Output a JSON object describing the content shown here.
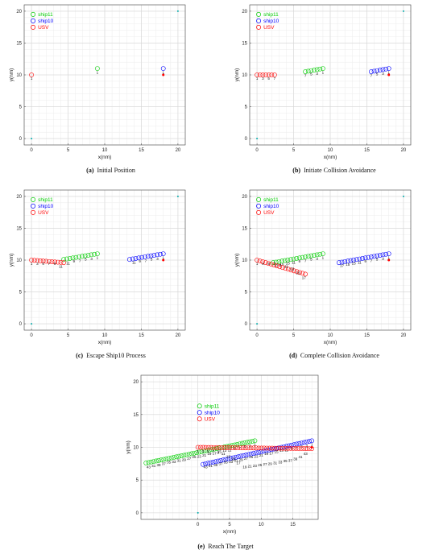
{
  "chart_data": [
    {
      "type": "scatter",
      "caption_tag": "(a)",
      "caption": "Initial Position",
      "xlabel": "x(nm)",
      "ylabel": "y(nm)",
      "xlim": [
        -1,
        21
      ],
      "ylim": [
        -1,
        21
      ],
      "xticks": [
        0,
        5,
        10,
        15,
        20
      ],
      "yticks": [
        0,
        5,
        10,
        15,
        20
      ],
      "grid": true,
      "legend_position": "top-left",
      "series": [
        {
          "name": "ship11",
          "color": "#00cc00",
          "start": [
            9,
            11
          ],
          "end": [
            9,
            11
          ],
          "count": 1,
          "labels": [
            [
              1,
              9,
              10.4
            ]
          ]
        },
        {
          "name": "ship10",
          "color": "#0000ff",
          "start": [
            18,
            11
          ],
          "end": [
            18,
            11
          ],
          "count": 1,
          "labels": [
            [
              1,
              18,
              10.4
            ]
          ]
        },
        {
          "name": "USV",
          "color": "#ff0000",
          "start": [
            0,
            10
          ],
          "end": [
            0,
            10
          ],
          "count": 1,
          "labels": [
            [
              1,
              0,
              9.4
            ]
          ]
        }
      ],
      "markers": [
        {
          "kind": "start",
          "x": 0,
          "y": 0,
          "color": "#00aaaa"
        },
        {
          "kind": "target",
          "x": 20,
          "y": 20,
          "color": "#00aaaa"
        },
        {
          "kind": "ship10-marker",
          "x": 18,
          "y": 10,
          "color": "#ff0000"
        }
      ]
    },
    {
      "type": "scatter",
      "caption_tag": "(b)",
      "caption": "Initiate Collision Avoidance",
      "xlabel": "x(nm)",
      "ylabel": "y(nm)",
      "xlim": [
        -1,
        21
      ],
      "ylim": [
        -1,
        21
      ],
      "xticks": [
        0,
        5,
        10,
        15,
        20
      ],
      "yticks": [
        0,
        5,
        10,
        15,
        20
      ],
      "grid": true,
      "legend_position": "top-left",
      "series": [
        {
          "name": "ship11",
          "color": "#00cc00",
          "start": [
            9,
            11
          ],
          "end": [
            6.6,
            10.5
          ],
          "count": 7,
          "labels": [
            [
              1,
              9,
              10.4
            ],
            [
              3,
              8.2,
              10.2
            ],
            [
              5,
              7.4,
              10.1
            ],
            [
              7,
              6.6,
              9.9
            ]
          ]
        },
        {
          "name": "ship10",
          "color": "#0000ff",
          "start": [
            18,
            11
          ],
          "end": [
            15.6,
            10.5
          ],
          "count": 7,
          "labels": [
            [
              1,
              18,
              10.4
            ],
            [
              3,
              17.2,
              10.2
            ],
            [
              5,
              16.4,
              10.1
            ],
            [
              7,
              15.6,
              9.9
            ]
          ]
        },
        {
          "name": "USV",
          "color": "#ff0000",
          "start": [
            0,
            10
          ],
          "end": [
            2.4,
            10
          ],
          "count": 7,
          "labels": [
            [
              1,
              0,
              9.4
            ],
            [
              3,
              0.8,
              9.4
            ],
            [
              5,
              1.6,
              9.4
            ],
            [
              7,
              2.4,
              9.4
            ]
          ]
        }
      ],
      "markers": [
        {
          "kind": "start",
          "x": 0,
          "y": 0,
          "color": "#00aaaa"
        },
        {
          "kind": "target",
          "x": 20,
          "y": 20,
          "color": "#00aaaa"
        },
        {
          "kind": "ship10-marker",
          "x": 18,
          "y": 10,
          "color": "#ff0000"
        }
      ]
    },
    {
      "type": "scatter",
      "caption_tag": "(c)",
      "caption": "Escape Ship10 Process",
      "xlabel": "x(nm)",
      "ylabel": "y(nm)",
      "xlim": [
        -1,
        21
      ],
      "ylim": [
        -1,
        21
      ],
      "xticks": [
        0,
        5,
        10,
        15,
        20
      ],
      "yticks": [
        0,
        5,
        10,
        15,
        20
      ],
      "grid": true,
      "legend_position": "top-left",
      "series": [
        {
          "name": "ship11",
          "color": "#00cc00",
          "start": [
            9,
            11
          ],
          "end": [
            4.4,
            10.1
          ],
          "count": 12,
          "labels": [
            [
              1,
              9,
              10.4
            ],
            [
              3,
              8.2,
              10.2
            ],
            [
              5,
              7.4,
              10.1
            ],
            [
              7,
              6.6,
              9.9
            ],
            [
              9,
              5.8,
              9.8
            ],
            [
              11,
              5.0,
              9.5
            ]
          ]
        },
        {
          "name": "ship10",
          "color": "#0000ff",
          "start": [
            18,
            11
          ],
          "end": [
            13.4,
            10.1
          ],
          "count": 12,
          "labels": [
            [
              1,
              18,
              10.4
            ],
            [
              3,
              17.2,
              10.2
            ],
            [
              5,
              16.4,
              10.1
            ],
            [
              7,
              15.6,
              9.9
            ],
            [
              9,
              14.8,
              9.8
            ],
            [
              11,
              14.0,
              9.6
            ]
          ]
        },
        {
          "name": "USV",
          "color": "#ff0000",
          "start": [
            0,
            10
          ],
          "end": [
            4.4,
            9.6
          ],
          "count": 12,
          "labels": [
            [
              1,
              0,
              9.4
            ],
            [
              3,
              0.8,
              9.4
            ],
            [
              5,
              1.6,
              9.4
            ],
            [
              7,
              2.4,
              9.4
            ],
            [
              9,
              3.2,
              9.4
            ],
            [
              11,
              4.0,
              9.0
            ]
          ]
        }
      ],
      "markers": [
        {
          "kind": "start",
          "x": 0,
          "y": 0,
          "color": "#00aaaa"
        },
        {
          "kind": "target",
          "x": 20,
          "y": 20,
          "color": "#00aaaa"
        },
        {
          "kind": "ship10-marker",
          "x": 18,
          "y": 10,
          "color": "#ff0000"
        }
      ]
    },
    {
      "type": "scatter",
      "caption_tag": "(d)",
      "caption": "Complete Collision Avoidance",
      "xlabel": "x(nm)",
      "ylabel": "y(nm)",
      "xlim": [
        -1,
        21
      ],
      "ylim": [
        -1,
        21
      ],
      "xticks": [
        0,
        5,
        10,
        15,
        20
      ],
      "yticks": [
        0,
        5,
        10,
        15,
        20
      ],
      "grid": true,
      "legend_position": "top-left",
      "series": [
        {
          "name": "ship11",
          "color": "#00cc00",
          "start": [
            9,
            11
          ],
          "end": [
            2.2,
            9.6
          ],
          "count": 18,
          "labels": [
            [
              1,
              9,
              10.4
            ],
            [
              3,
              8.2,
              10.2
            ],
            [
              5,
              7.4,
              10.1
            ],
            [
              7,
              6.6,
              9.9
            ],
            [
              9,
              5.8,
              9.8
            ],
            [
              11,
              5.0,
              9.6
            ],
            [
              13,
              4.2,
              9.5
            ],
            [
              15,
              3.4,
              9.3
            ],
            [
              17,
              2.6,
              9.1
            ]
          ]
        },
        {
          "name": "ship10",
          "color": "#0000ff",
          "start": [
            18,
            11
          ],
          "end": [
            11.2,
            9.6
          ],
          "count": 18,
          "labels": [
            [
              1,
              18,
              10.4
            ],
            [
              3,
              17.2,
              10.2
            ],
            [
              5,
              16.4,
              10.1
            ],
            [
              7,
              15.6,
              9.9
            ],
            [
              9,
              14.8,
              9.8
            ],
            [
              11,
              14.0,
              9.6
            ],
            [
              13,
              13.2,
              9.5
            ],
            [
              15,
              12.4,
              9.3
            ],
            [
              17,
              11.6,
              9.1
            ]
          ]
        },
        {
          "name": "USV",
          "color": "#ff0000",
          "start": [
            0,
            10
          ],
          "end": [
            6.6,
            7.8
          ],
          "count": 18,
          "labels": [
            [
              1,
              0,
              9.4
            ],
            [
              3,
              0.8,
              9.4
            ],
            [
              5,
              1.6,
              9.4
            ],
            [
              7,
              2.4,
              9.4
            ],
            [
              9,
              3.2,
              9.2
            ],
            [
              11,
              4.0,
              9.0
            ],
            [
              13,
              4.8,
              8.6
            ],
            [
              15,
              5.6,
              8.0
            ],
            [
              17,
              6.4,
              7.2
            ]
          ]
        }
      ],
      "markers": [
        {
          "kind": "start",
          "x": 0,
          "y": 0,
          "color": "#00aaaa"
        },
        {
          "kind": "target",
          "x": 20,
          "y": 20,
          "color": "#00aaaa"
        },
        {
          "kind": "ship10-marker",
          "x": 18,
          "y": 10,
          "color": "#ff0000"
        }
      ]
    },
    {
      "type": "scatter",
      "caption_tag": "(e)",
      "caption": "Reach The Target",
      "xlabel": "x(nm)",
      "ylabel": "y(nm)",
      "xlim": [
        -9,
        19
      ],
      "ylim": [
        -1,
        21
      ],
      "xticks": [
        0,
        5,
        10,
        15
      ],
      "yticks": [
        0,
        5,
        10,
        15,
        20
      ],
      "grid": true,
      "legend_position": "top-center",
      "series": [
        {
          "name": "ship11",
          "color": "#00cc00",
          "start": [
            9,
            11
          ],
          "end": [
            -8.2,
            7.6
          ],
          "count": 44,
          "labels": [
            [
              1,
              9,
              10.4
            ],
            [
              3,
              8.2,
              10.2
            ],
            [
              5,
              7.4,
              10.1
            ],
            [
              7,
              6.6,
              9.9
            ],
            [
              9,
              5.8,
              9.8
            ],
            [
              11,
              5.0,
              9.6
            ],
            [
              13,
              4.2,
              9.5
            ],
            [
              15,
              3.4,
              9.3
            ],
            [
              17,
              2.6,
              9.1
            ],
            [
              19,
              1.8,
              9.0
            ],
            [
              21,
              1.0,
              8.8
            ],
            [
              23,
              0.2,
              8.6
            ],
            [
              25,
              -0.6,
              8.5
            ],
            [
              27,
              -1.4,
              8.3
            ],
            [
              29,
              -2.2,
              8.1
            ],
            [
              31,
              -3.0,
              8.0
            ],
            [
              33,
              -3.8,
              7.8
            ],
            [
              35,
              -4.6,
              7.7
            ],
            [
              37,
              -5.4,
              7.5
            ],
            [
              39,
              -6.2,
              7.3
            ],
            [
              41,
              -7.0,
              7.2
            ],
            [
              43,
              -7.8,
              7.0
            ]
          ]
        },
        {
          "name": "ship10",
          "color": "#0000ff",
          "start": [
            18,
            11
          ],
          "end": [
            0.8,
            7.4
          ],
          "count": 44,
          "labels": [
            [
              1,
              18,
              10.4
            ],
            [
              3,
              17.2,
              10.2
            ],
            [
              5,
              16.4,
              10.1
            ],
            [
              7,
              15.6,
              9.9
            ],
            [
              9,
              14.8,
              9.8
            ],
            [
              11,
              14.0,
              9.6
            ],
            [
              13,
              13.2,
              9.5
            ],
            [
              15,
              12.4,
              9.3
            ],
            [
              17,
              11.6,
              9.1
            ],
            [
              19,
              10.8,
              9.0
            ],
            [
              21,
              10.0,
              8.8
            ],
            [
              23,
              9.2,
              8.6
            ],
            [
              25,
              8.4,
              8.5
            ],
            [
              27,
              7.6,
              8.3
            ],
            [
              29,
              6.8,
              8.1
            ],
            [
              31,
              6.0,
              8.0
            ],
            [
              33,
              5.2,
              7.8
            ],
            [
              35,
              4.4,
              7.7
            ],
            [
              37,
              3.6,
              7.5
            ],
            [
              39,
              2.8,
              7.3
            ],
            [
              41,
              2.0,
              7.2
            ],
            [
              43,
              1.2,
              7.0
            ]
          ]
        },
        {
          "name": "USV",
          "color": "#ff0000",
          "start": [
            0,
            10
          ],
          "end": [
            18,
            9.8
          ],
          "count": 44,
          "labels": [
            [
              1,
              0,
              9.4
            ],
            [
              3,
              0.8,
              9.4
            ],
            [
              5,
              1.6,
              9.4
            ],
            [
              7,
              2.4,
              9.4
            ],
            [
              9,
              3.2,
              9.2
            ],
            [
              11,
              4.0,
              9.0
            ],
            [
              13,
              4.8,
              8.6
            ],
            [
              15,
              5.6,
              8.2
            ],
            [
              17,
              6.4,
              7.6
            ],
            [
              19,
              7.4,
              7.0
            ],
            [
              21,
              8.2,
              7.1
            ],
            [
              23,
              9.0,
              7.2
            ],
            [
              25,
              9.8,
              7.3
            ],
            [
              27,
              10.6,
              7.4
            ],
            [
              29,
              11.4,
              7.5
            ],
            [
              31,
              12.2,
              7.6
            ],
            [
              33,
              13.0,
              7.7
            ],
            [
              35,
              13.8,
              7.9
            ],
            [
              37,
              14.6,
              8.0
            ],
            [
              39,
              15.4,
              8.2
            ],
            [
              41,
              16.2,
              8.5
            ],
            [
              43,
              17.0,
              9.0
            ]
          ]
        }
      ],
      "markers": [
        {
          "kind": "start",
          "x": 0,
          "y": 0,
          "color": "#00aaaa"
        },
        {
          "kind": "ship10-marker",
          "x": 18,
          "y": 10,
          "color": "#ff0000"
        }
      ]
    }
  ]
}
